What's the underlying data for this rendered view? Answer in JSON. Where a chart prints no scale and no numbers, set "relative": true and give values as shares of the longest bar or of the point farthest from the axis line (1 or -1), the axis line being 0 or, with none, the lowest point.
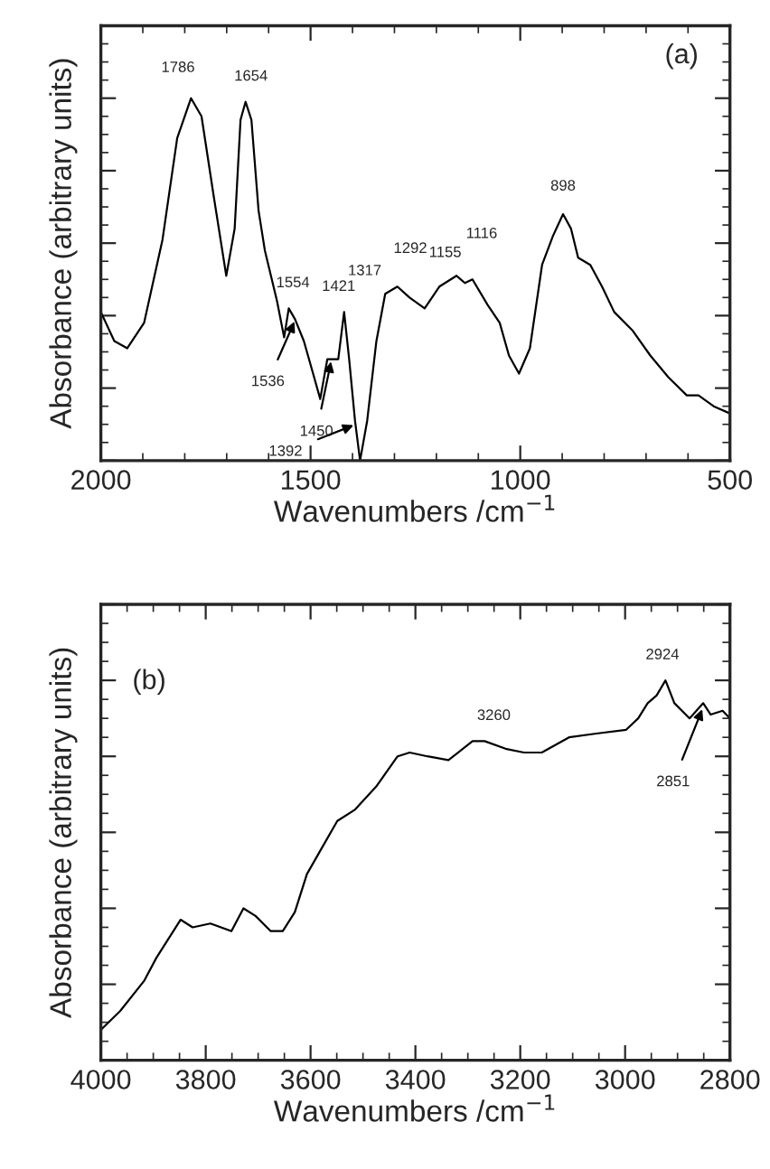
{
  "chart_data": [
    {
      "type": "line",
      "relative": true,
      "xlabel": "Wavenumbers /cm$^{−1}$",
      "ylabel": "Absorbance (arbitrary units)",
      "xlim": [
        2000,
        500
      ],
      "xticks": [
        2000,
        1500,
        1000,
        500
      ],
      "tick_labels": "x",
      "grid": false,
      "legend": false,
      "series": [
        {
          "color": "#000000",
          "x": [
            2000,
            1968,
            1937,
            1897,
            1853,
            1818,
            1785,
            1760,
            1731,
            1701,
            1681,
            1667,
            1655,
            1641,
            1624,
            1609,
            1580,
            1563,
            1552,
            1537,
            1516,
            1494,
            1477,
            1460,
            1444,
            1434,
            1420,
            1408,
            1394,
            1382,
            1365,
            1343,
            1322,
            1293,
            1264,
            1228,
            1193,
            1152,
            1132,
            1114,
            1078,
            1049,
            1027,
            1003,
            977,
            948,
            922,
            898,
            879,
            862,
            833,
            805,
            776,
            733,
            690,
            647,
            603,
            575,
            539,
            500
          ],
          "values": [
            0.41,
            0.33,
            0.31,
            0.38,
            0.61,
            0.89,
            1.0,
            0.95,
            0.73,
            0.51,
            0.64,
            0.94,
            0.99,
            0.94,
            0.69,
            0.58,
            0.44,
            0.34,
            0.42,
            0.39,
            0.33,
            0.24,
            0.17,
            0.28,
            0.28,
            0.28,
            0.41,
            0.28,
            0.11,
            0.0,
            0.11,
            0.33,
            0.46,
            0.48,
            0.45,
            0.42,
            0.48,
            0.51,
            0.49,
            0.5,
            0.43,
            0.38,
            0.29,
            0.24,
            0.31,
            0.54,
            0.62,
            0.68,
            0.64,
            0.56,
            0.54,
            0.48,
            0.41,
            0.36,
            0.29,
            0.23,
            0.18,
            0.18,
            0.15,
            0.13
          ]
        }
      ],
      "annotations": [
        "(a)",
        {
          "text": "1786",
          "x": 1786,
          "y": 1.0
        },
        {
          "text": "1654",
          "x": 1654,
          "y": 0.99
        },
        {
          "text": "1554",
          "x": 1554,
          "y": 0.42
        },
        {
          "text": "1536",
          "x": 1536,
          "y": 0.39
        },
        {
          "text": "1450",
          "x": 1450,
          "y": 0.28
        },
        {
          "text": "1421",
          "x": 1421,
          "y": 0.41
        },
        {
          "text": "1392",
          "x": 1392,
          "y": 0.1
        },
        {
          "text": "1317",
          "x": 1317,
          "y": 0.46
        },
        {
          "text": "1292",
          "x": 1292,
          "y": 0.48
        },
        {
          "text": "1155",
          "x": 1155,
          "y": 0.51
        },
        {
          "text": "1116",
          "x": 1116,
          "y": 0.5
        },
        {
          "text": "898",
          "x": 898,
          "y": 0.68
        }
      ]
    },
    {
      "type": "line",
      "relative": true,
      "xlabel": "Wavenumbers /cm$^{−1}$",
      "ylabel": "Absorbance (arbitrary units)",
      "xlim": [
        4000,
        2800
      ],
      "xticks": [
        4000,
        3800,
        3600,
        3400,
        3200,
        3000,
        2800
      ],
      "tick_labels": "x",
      "grid": false,
      "legend": false,
      "series": [
        {
          "color": "#000000",
          "x": [
            4000,
            3963,
            3917,
            3894,
            3871,
            3848,
            3825,
            3791,
            3751,
            3728,
            3705,
            3676,
            3653,
            3630,
            3607,
            3578,
            3549,
            3515,
            3475,
            3434,
            3411,
            3377,
            3337,
            3291,
            3268,
            3228,
            3193,
            3159,
            3107,
            3055,
            2998,
            2975,
            2957,
            2940,
            2923,
            2906,
            2877,
            2851,
            2837,
            2814,
            2800
          ],
          "values": [
            0.08,
            0.13,
            0.21,
            0.27,
            0.32,
            0.37,
            0.35,
            0.36,
            0.34,
            0.4,
            0.38,
            0.34,
            0.34,
            0.39,
            0.49,
            0.56,
            0.63,
            0.66,
            0.72,
            0.8,
            0.81,
            0.8,
            0.79,
            0.84,
            0.84,
            0.82,
            0.81,
            0.81,
            0.85,
            0.86,
            0.87,
            0.9,
            0.94,
            0.96,
            1.0,
            0.94,
            0.9,
            0.94,
            0.91,
            0.92,
            0.9
          ]
        }
      ],
      "annotations": [
        "(b)",
        {
          "text": "3260",
          "x": 3260,
          "y": 0.84
        },
        {
          "text": "2924",
          "x": 2924,
          "y": 1.0
        },
        {
          "text": "2851",
          "x": 2851,
          "y": 0.93
        }
      ]
    }
  ]
}
